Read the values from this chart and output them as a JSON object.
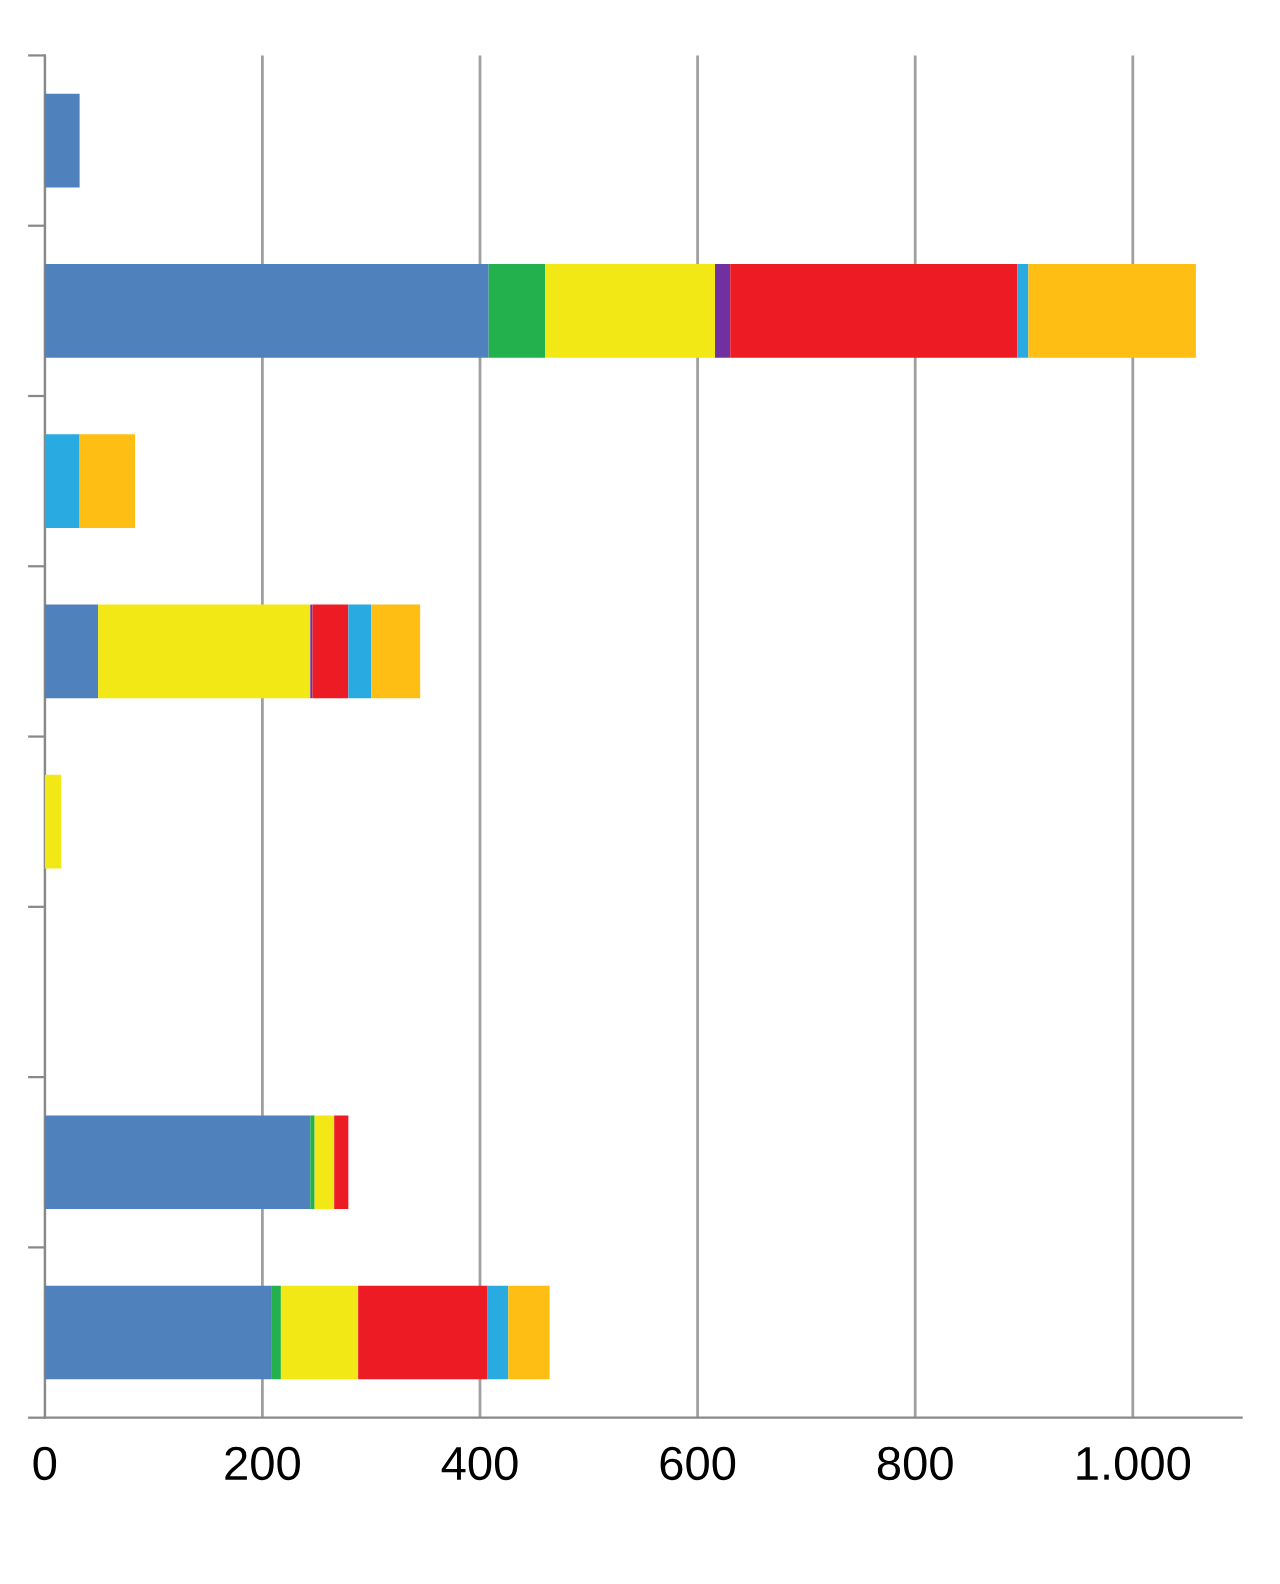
{
  "chart_data": {
    "type": "bar",
    "orientation": "horizontal",
    "stacked": true,
    "categories": [
      null,
      null,
      null,
      null,
      null,
      null,
      null,
      null
    ],
    "series": [
      {
        "color": "#4f81bd",
        "values": [
          32,
          408,
          null,
          49,
          null,
          null,
          244,
          208
        ]
      },
      {
        "color": "#23b14d",
        "values": [
          null,
          52,
          null,
          null,
          null,
          null,
          4,
          9
        ]
      },
      {
        "color": "#f2e816",
        "values": [
          null,
          156,
          null,
          195,
          15,
          null,
          18,
          71
        ]
      },
      {
        "color": "#7030a0",
        "values": [
          null,
          14,
          null,
          2,
          null,
          null,
          null,
          null
        ]
      },
      {
        "color": "#ed1c24",
        "values": [
          null,
          264,
          null,
          33,
          null,
          null,
          13,
          119
        ]
      },
      {
        "color": "#29abe2",
        "values": [
          null,
          10,
          32,
          21,
          null,
          null,
          null,
          19
        ]
      },
      {
        "color": "#ffbe14",
        "values": [
          null,
          154,
          51,
          45,
          null,
          null,
          null,
          38
        ]
      }
    ],
    "xlim": [
      0,
      1100
    ],
    "xticks": [
      0,
      200,
      400,
      600,
      800,
      {
        "value": 1000,
        "label": "1.000"
      }
    ],
    "grid": "x",
    "tick_labels": "x"
  }
}
